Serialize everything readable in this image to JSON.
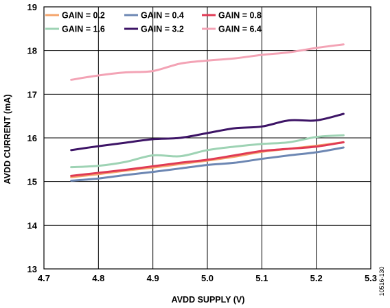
{
  "chart_data": {
    "type": "line",
    "xlabel": "AVDD SUPPLY (V)",
    "ylabel": "AVDD CURRENT (mA)",
    "xlim": [
      4.7,
      5.3
    ],
    "ylim": [
      13,
      19
    ],
    "xticks": [
      "4.7",
      "4.8",
      "4.9",
      "5.0",
      "5.1",
      "5.2",
      "5.3"
    ],
    "yticks": [
      "13",
      "14",
      "15",
      "16",
      "17",
      "18",
      "19"
    ],
    "grid": true,
    "legend_position": "top-left",
    "figure_id": "10516-130",
    "series": [
      {
        "name": "GAIN = 0.2",
        "color": "#f4a46b",
        "x": [
          4.75,
          4.8,
          4.85,
          4.9,
          4.95,
          5.0,
          5.05,
          5.1,
          5.15,
          5.2,
          5.25
        ],
        "y": [
          15.1,
          15.17,
          15.25,
          15.32,
          15.4,
          15.48,
          15.57,
          15.68,
          15.75,
          15.82,
          15.9
        ]
      },
      {
        "name": "GAIN = 0.4",
        "color": "#6d87b3",
        "x": [
          4.75,
          4.8,
          4.85,
          4.9,
          4.95,
          5.0,
          5.05,
          5.1,
          5.15,
          5.2,
          5.25
        ],
        "y": [
          15.02,
          15.07,
          15.15,
          15.22,
          15.3,
          15.38,
          15.43,
          15.52,
          15.6,
          15.67,
          15.78
        ]
      },
      {
        "name": "GAIN = 0.8",
        "color": "#e03a54",
        "x": [
          4.75,
          4.8,
          4.85,
          4.9,
          4.95,
          5.0,
          5.05,
          5.1,
          5.15,
          5.2,
          5.25
        ],
        "y": [
          15.13,
          15.2,
          15.27,
          15.35,
          15.43,
          15.5,
          15.6,
          15.7,
          15.75,
          15.8,
          15.9
        ]
      },
      {
        "name": "GAIN = 1.6",
        "color": "#9ed3b4",
        "x": [
          4.75,
          4.8,
          4.85,
          4.9,
          4.95,
          5.0,
          5.05,
          5.1,
          5.15,
          5.2,
          5.25
        ],
        "y": [
          15.33,
          15.36,
          15.45,
          15.6,
          15.58,
          15.72,
          15.8,
          15.86,
          15.9,
          16.02,
          16.06
        ]
      },
      {
        "name": "GAIN = 3.2",
        "color": "#3d1466",
        "x": [
          4.75,
          4.8,
          4.85,
          4.9,
          4.95,
          5.0,
          5.05,
          5.1,
          5.15,
          5.2,
          5.25
        ],
        "y": [
          15.72,
          15.81,
          15.89,
          15.97,
          16.0,
          16.11,
          16.22,
          16.26,
          16.4,
          16.4,
          16.55
        ]
      },
      {
        "name": "GAIN = 6.4",
        "color": "#f3a3b5",
        "x": [
          4.75,
          4.8,
          4.85,
          4.9,
          4.95,
          5.0,
          5.05,
          5.1,
          5.15,
          5.2,
          5.25
        ],
        "y": [
          17.33,
          17.43,
          17.5,
          17.53,
          17.7,
          17.77,
          17.82,
          17.9,
          17.96,
          18.06,
          18.14
        ]
      }
    ]
  }
}
